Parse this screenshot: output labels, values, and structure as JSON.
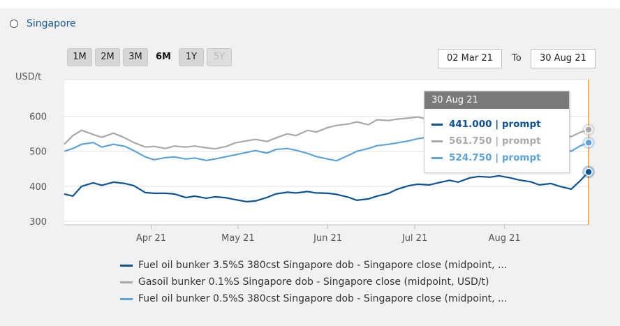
{
  "region": {
    "label": "Singapore"
  },
  "range_buttons": [
    {
      "label": "1M",
      "state": "normal"
    },
    {
      "label": "2M",
      "state": "normal"
    },
    {
      "label": "3M",
      "state": "normal"
    },
    {
      "label": "6M",
      "state": "active"
    },
    {
      "label": "1Y",
      "state": "normal"
    },
    {
      "label": "5Y",
      "state": "disabled"
    }
  ],
  "date_range": {
    "from": "02 Mar 21",
    "to_label": "To",
    "to": "30 Aug 21"
  },
  "tooltip": {
    "date": "30 Aug 21",
    "rows": [
      {
        "text": "441.000 | prompt",
        "color": "#0b5394"
      },
      {
        "text": "561.750 | prompt",
        "color": "#a9a9a9"
      },
      {
        "text": "524.750 | prompt",
        "color": "#5ba3d9"
      }
    ]
  },
  "legend": [
    {
      "text": "Fuel oil bunker 3.5%S 380cst Singapore dob - Singapore close (midpoint, ...",
      "color": "#0b5394"
    },
    {
      "text": "Gasoil bunker 0.1%S Singapore dob - Singapore close (midpoint, USD/t)",
      "color": "#a9a9a9"
    },
    {
      "text": "Fuel oil bunker 0.5%S 380cst Singapore dob - Singapore close (midpoint, ...",
      "color": "#5ba3d9"
    }
  ],
  "chart_data": {
    "type": "line",
    "ylabel": "USD/t",
    "ylim": [
      290,
      705
    ],
    "yticks": [
      300,
      400,
      500,
      600
    ],
    "x_range": [
      "2021-03-02",
      "2021-08-30"
    ],
    "xticks": [
      {
        "label": "Apr 21",
        "date": "2021-04-01"
      },
      {
        "label": "May 21",
        "date": "2021-05-01"
      },
      {
        "label": "Jun 21",
        "date": "2021-06-01"
      },
      {
        "label": "Jul 21",
        "date": "2021-07-01"
      },
      {
        "label": "Aug 21",
        "date": "2021-08-01"
      }
    ],
    "grid": "horizontal",
    "crosshair_date": "2021-08-30",
    "series": [
      {
        "color": "#0b5394",
        "points": [
          [
            "2021-03-02",
            378
          ],
          [
            "2021-03-05",
            372
          ],
          [
            "2021-03-08",
            400
          ],
          [
            "2021-03-12",
            410
          ],
          [
            "2021-03-15",
            403
          ],
          [
            "2021-03-19",
            412
          ],
          [
            "2021-03-23",
            408
          ],
          [
            "2021-03-26",
            402
          ],
          [
            "2021-03-30",
            382
          ],
          [
            "2021-04-02",
            380
          ],
          [
            "2021-04-06",
            380
          ],
          [
            "2021-04-09",
            378
          ],
          [
            "2021-04-13",
            368
          ],
          [
            "2021-04-16",
            372
          ],
          [
            "2021-04-20",
            366
          ],
          [
            "2021-04-23",
            370
          ],
          [
            "2021-04-27",
            367
          ],
          [
            "2021-04-30",
            362
          ],
          [
            "2021-05-04",
            356
          ],
          [
            "2021-05-07",
            358
          ],
          [
            "2021-05-11",
            368
          ],
          [
            "2021-05-14",
            378
          ],
          [
            "2021-05-18",
            383
          ],
          [
            "2021-05-21",
            381
          ],
          [
            "2021-05-25",
            385
          ],
          [
            "2021-05-28",
            381
          ],
          [
            "2021-06-01",
            380
          ],
          [
            "2021-06-04",
            377
          ],
          [
            "2021-06-08",
            369
          ],
          [
            "2021-06-11",
            360
          ],
          [
            "2021-06-15",
            364
          ],
          [
            "2021-06-18",
            372
          ],
          [
            "2021-06-22",
            380
          ],
          [
            "2021-06-25",
            392
          ],
          [
            "2021-06-29",
            402
          ],
          [
            "2021-07-02",
            406
          ],
          [
            "2021-07-06",
            404
          ],
          [
            "2021-07-09",
            410
          ],
          [
            "2021-07-13",
            417
          ],
          [
            "2021-07-16",
            412
          ],
          [
            "2021-07-20",
            424
          ],
          [
            "2021-07-23",
            428
          ],
          [
            "2021-07-27",
            426
          ],
          [
            "2021-07-30",
            430
          ],
          [
            "2021-08-03",
            424
          ],
          [
            "2021-08-06",
            418
          ],
          [
            "2021-08-10",
            413
          ],
          [
            "2021-08-13",
            404
          ],
          [
            "2021-08-17",
            408
          ],
          [
            "2021-08-20",
            400
          ],
          [
            "2021-08-24",
            392
          ],
          [
            "2021-08-27",
            415
          ],
          [
            "2021-08-30",
            441
          ]
        ]
      },
      {
        "color": "#a9a9a9",
        "points": [
          [
            "2021-03-02",
            520
          ],
          [
            "2021-03-05",
            545
          ],
          [
            "2021-03-08",
            560
          ],
          [
            "2021-03-12",
            548
          ],
          [
            "2021-03-15",
            540
          ],
          [
            "2021-03-19",
            552
          ],
          [
            "2021-03-23",
            538
          ],
          [
            "2021-03-26",
            525
          ],
          [
            "2021-03-30",
            512
          ],
          [
            "2021-04-02",
            514
          ],
          [
            "2021-04-06",
            508
          ],
          [
            "2021-04-09",
            515
          ],
          [
            "2021-04-13",
            512
          ],
          [
            "2021-04-16",
            515
          ],
          [
            "2021-04-20",
            510
          ],
          [
            "2021-04-23",
            507
          ],
          [
            "2021-04-27",
            514
          ],
          [
            "2021-04-30",
            524
          ],
          [
            "2021-05-04",
            530
          ],
          [
            "2021-05-07",
            534
          ],
          [
            "2021-05-11",
            528
          ],
          [
            "2021-05-14",
            538
          ],
          [
            "2021-05-18",
            550
          ],
          [
            "2021-05-21",
            545
          ],
          [
            "2021-05-25",
            560
          ],
          [
            "2021-05-28",
            555
          ],
          [
            "2021-06-01",
            568
          ],
          [
            "2021-06-04",
            574
          ],
          [
            "2021-06-08",
            578
          ],
          [
            "2021-06-11",
            584
          ],
          [
            "2021-06-15",
            576
          ],
          [
            "2021-06-18",
            590
          ],
          [
            "2021-06-22",
            588
          ],
          [
            "2021-06-25",
            592
          ],
          [
            "2021-06-29",
            595
          ],
          [
            "2021-07-02",
            598
          ],
          [
            "2021-07-06",
            590
          ],
          [
            "2021-07-09",
            596
          ],
          [
            "2021-07-13",
            600
          ],
          [
            "2021-07-16",
            602
          ],
          [
            "2021-07-20",
            598
          ],
          [
            "2021-07-23",
            602
          ],
          [
            "2021-07-27",
            606
          ],
          [
            "2021-07-30",
            608
          ],
          [
            "2021-08-03",
            604
          ],
          [
            "2021-08-06",
            596
          ],
          [
            "2021-08-10",
            588
          ],
          [
            "2021-08-13",
            580
          ],
          [
            "2021-08-17",
            570
          ],
          [
            "2021-08-20",
            552
          ],
          [
            "2021-08-24",
            542
          ],
          [
            "2021-08-27",
            554
          ],
          [
            "2021-08-30",
            561.75
          ]
        ]
      },
      {
        "color": "#5ba3d9",
        "points": [
          [
            "2021-03-02",
            500
          ],
          [
            "2021-03-05",
            508
          ],
          [
            "2021-03-08",
            520
          ],
          [
            "2021-03-12",
            525
          ],
          [
            "2021-03-15",
            512
          ],
          [
            "2021-03-19",
            520
          ],
          [
            "2021-03-23",
            514
          ],
          [
            "2021-03-26",
            502
          ],
          [
            "2021-03-30",
            484
          ],
          [
            "2021-04-02",
            476
          ],
          [
            "2021-04-06",
            482
          ],
          [
            "2021-04-09",
            484
          ],
          [
            "2021-04-13",
            478
          ],
          [
            "2021-04-16",
            481
          ],
          [
            "2021-04-20",
            474
          ],
          [
            "2021-04-23",
            478
          ],
          [
            "2021-04-27",
            485
          ],
          [
            "2021-04-30",
            490
          ],
          [
            "2021-05-04",
            497
          ],
          [
            "2021-05-07",
            502
          ],
          [
            "2021-05-11",
            495
          ],
          [
            "2021-05-14",
            505
          ],
          [
            "2021-05-18",
            508
          ],
          [
            "2021-05-21",
            503
          ],
          [
            "2021-05-25",
            494
          ],
          [
            "2021-05-28",
            485
          ],
          [
            "2021-06-01",
            478
          ],
          [
            "2021-06-04",
            473
          ],
          [
            "2021-06-08",
            488
          ],
          [
            "2021-06-11",
            500
          ],
          [
            "2021-06-15",
            508
          ],
          [
            "2021-06-18",
            516
          ],
          [
            "2021-06-22",
            520
          ],
          [
            "2021-06-25",
            524
          ],
          [
            "2021-06-29",
            530
          ],
          [
            "2021-07-02",
            536
          ],
          [
            "2021-07-06",
            541
          ],
          [
            "2021-07-09",
            546
          ],
          [
            "2021-07-13",
            550
          ],
          [
            "2021-07-16",
            552
          ],
          [
            "2021-07-20",
            555
          ],
          [
            "2021-07-23",
            558
          ],
          [
            "2021-07-27",
            556
          ],
          [
            "2021-07-30",
            560
          ],
          [
            "2021-08-03",
            555
          ],
          [
            "2021-08-06",
            549
          ],
          [
            "2021-08-10",
            540
          ],
          [
            "2021-08-13",
            530
          ],
          [
            "2021-08-17",
            522
          ],
          [
            "2021-08-20",
            512
          ],
          [
            "2021-08-24",
            500
          ],
          [
            "2021-08-27",
            515
          ],
          [
            "2021-08-30",
            524.75
          ]
        ]
      }
    ]
  }
}
